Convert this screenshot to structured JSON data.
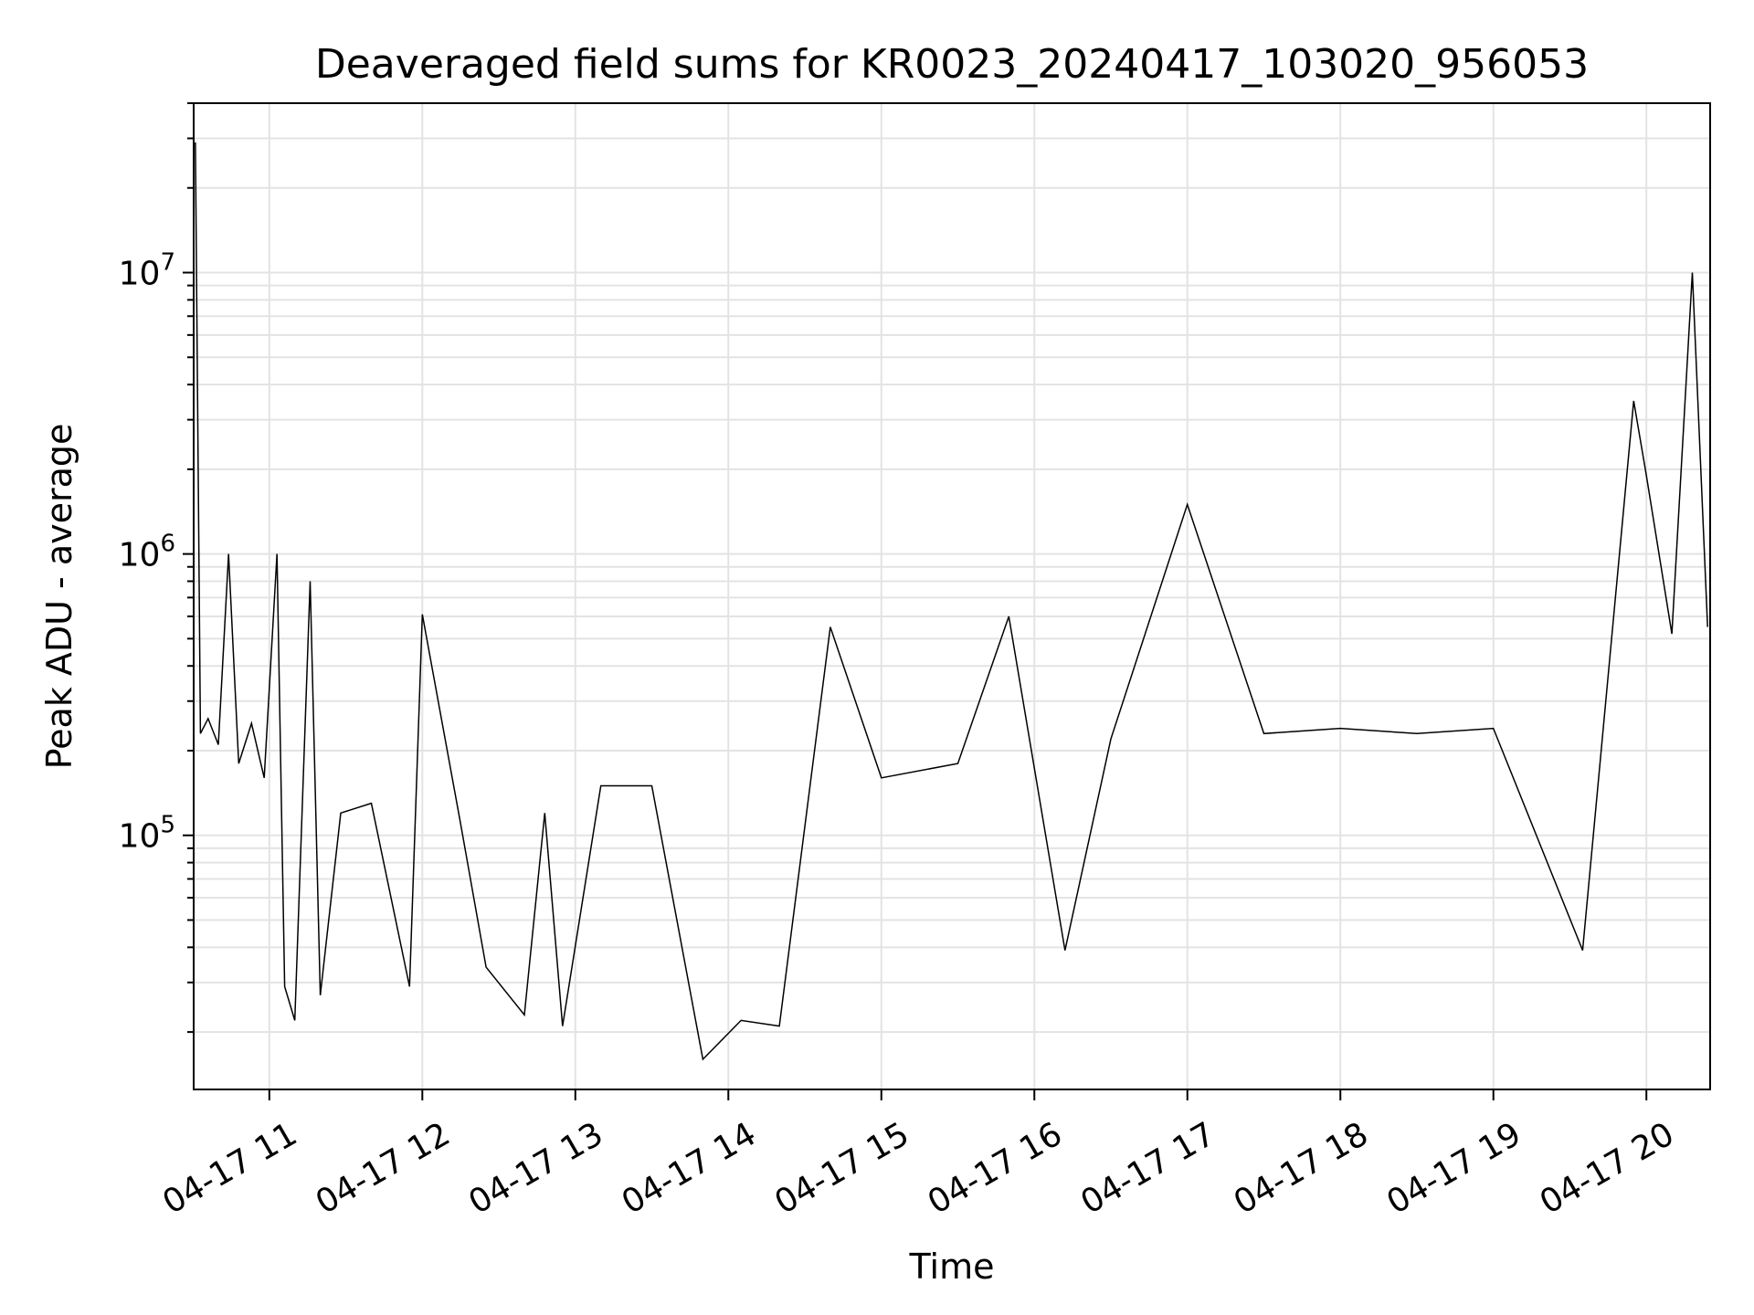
{
  "chart_data": {
    "type": "line",
    "title": "Deaveraged field sums for KR0023_20240417_103020_956053",
    "xlabel": "Time",
    "ylabel": "Peak ADU - average",
    "yscale": "log",
    "xlim": [
      "2024-04-17T10:30:20",
      "2024-04-17T20:25:00"
    ],
    "ylim": [
      12500,
      40000000
    ],
    "grid": true,
    "line_color": "#000000",
    "x_ticks": [
      {
        "t": "2024-04-17T11:00",
        "label": "04-17 11"
      },
      {
        "t": "2024-04-17T12:00",
        "label": "04-17 12"
      },
      {
        "t": "2024-04-17T13:00",
        "label": "04-17 13"
      },
      {
        "t": "2024-04-17T14:00",
        "label": "04-17 14"
      },
      {
        "t": "2024-04-17T15:00",
        "label": "04-17 15"
      },
      {
        "t": "2024-04-17T16:00",
        "label": "04-17 16"
      },
      {
        "t": "2024-04-17T17:00",
        "label": "04-17 17"
      },
      {
        "t": "2024-04-17T18:00",
        "label": "04-17 18"
      },
      {
        "t": "2024-04-17T19:00",
        "label": "04-17 19"
      },
      {
        "t": "2024-04-17T20:00",
        "label": "04-17 20"
      }
    ],
    "y_ticks": [
      {
        "value": 100000,
        "base": "10",
        "exp": "5"
      },
      {
        "value": 1000000,
        "base": "10",
        "exp": "6"
      },
      {
        "value": 10000000,
        "base": "10",
        "exp": "7"
      }
    ],
    "series": [
      {
        "values": [
          [
            "2024-04-17T10:31",
            29000000
          ],
          [
            "2024-04-17T10:33",
            230000
          ],
          [
            "2024-04-17T10:36",
            260000
          ],
          [
            "2024-04-17T10:40",
            210000
          ],
          [
            "2024-04-17T10:44",
            1000000
          ],
          [
            "2024-04-17T10:48",
            180000
          ],
          [
            "2024-04-17T10:53",
            250000
          ],
          [
            "2024-04-17T10:58",
            160000
          ],
          [
            "2024-04-17T11:03",
            1000000
          ],
          [
            "2024-04-17T11:06",
            29000
          ],
          [
            "2024-04-17T11:10",
            22000
          ],
          [
            "2024-04-17T11:16",
            800000
          ],
          [
            "2024-04-17T11:20",
            27000
          ],
          [
            "2024-04-17T11:28",
            120000
          ],
          [
            "2024-04-17T11:40",
            130000
          ],
          [
            "2024-04-17T11:55",
            29000
          ],
          [
            "2024-04-17T12:00",
            610000
          ],
          [
            "2024-04-17T12:15",
            110000
          ],
          [
            "2024-04-17T12:25",
            34000
          ],
          [
            "2024-04-17T12:40",
            23000
          ],
          [
            "2024-04-17T12:48",
            120000
          ],
          [
            "2024-04-17T12:55",
            21000
          ],
          [
            "2024-04-17T13:10",
            150000
          ],
          [
            "2024-04-17T13:30",
            150000
          ],
          [
            "2024-04-17T13:50",
            16000
          ],
          [
            "2024-04-17T14:05",
            22000
          ],
          [
            "2024-04-17T14:20",
            21000
          ],
          [
            "2024-04-17T14:40",
            550000
          ],
          [
            "2024-04-17T15:00",
            160000
          ],
          [
            "2024-04-17T15:30",
            180000
          ],
          [
            "2024-04-17T15:50",
            600000
          ],
          [
            "2024-04-17T16:12",
            39000
          ],
          [
            "2024-04-17T16:30",
            220000
          ],
          [
            "2024-04-17T17:00",
            1500000
          ],
          [
            "2024-04-17T17:30",
            230000
          ],
          [
            "2024-04-17T18:00",
            240000
          ],
          [
            "2024-04-17T18:30",
            230000
          ],
          [
            "2024-04-17T19:00",
            240000
          ],
          [
            "2024-04-17T19:35",
            39000
          ],
          [
            "2024-04-17T19:55",
            3500000
          ],
          [
            "2024-04-17T20:00",
            1900000
          ],
          [
            "2024-04-17T20:10",
            520000
          ],
          [
            "2024-04-17T20:18",
            10000000
          ],
          [
            "2024-04-17T20:24",
            550000
          ]
        ]
      }
    ]
  }
}
